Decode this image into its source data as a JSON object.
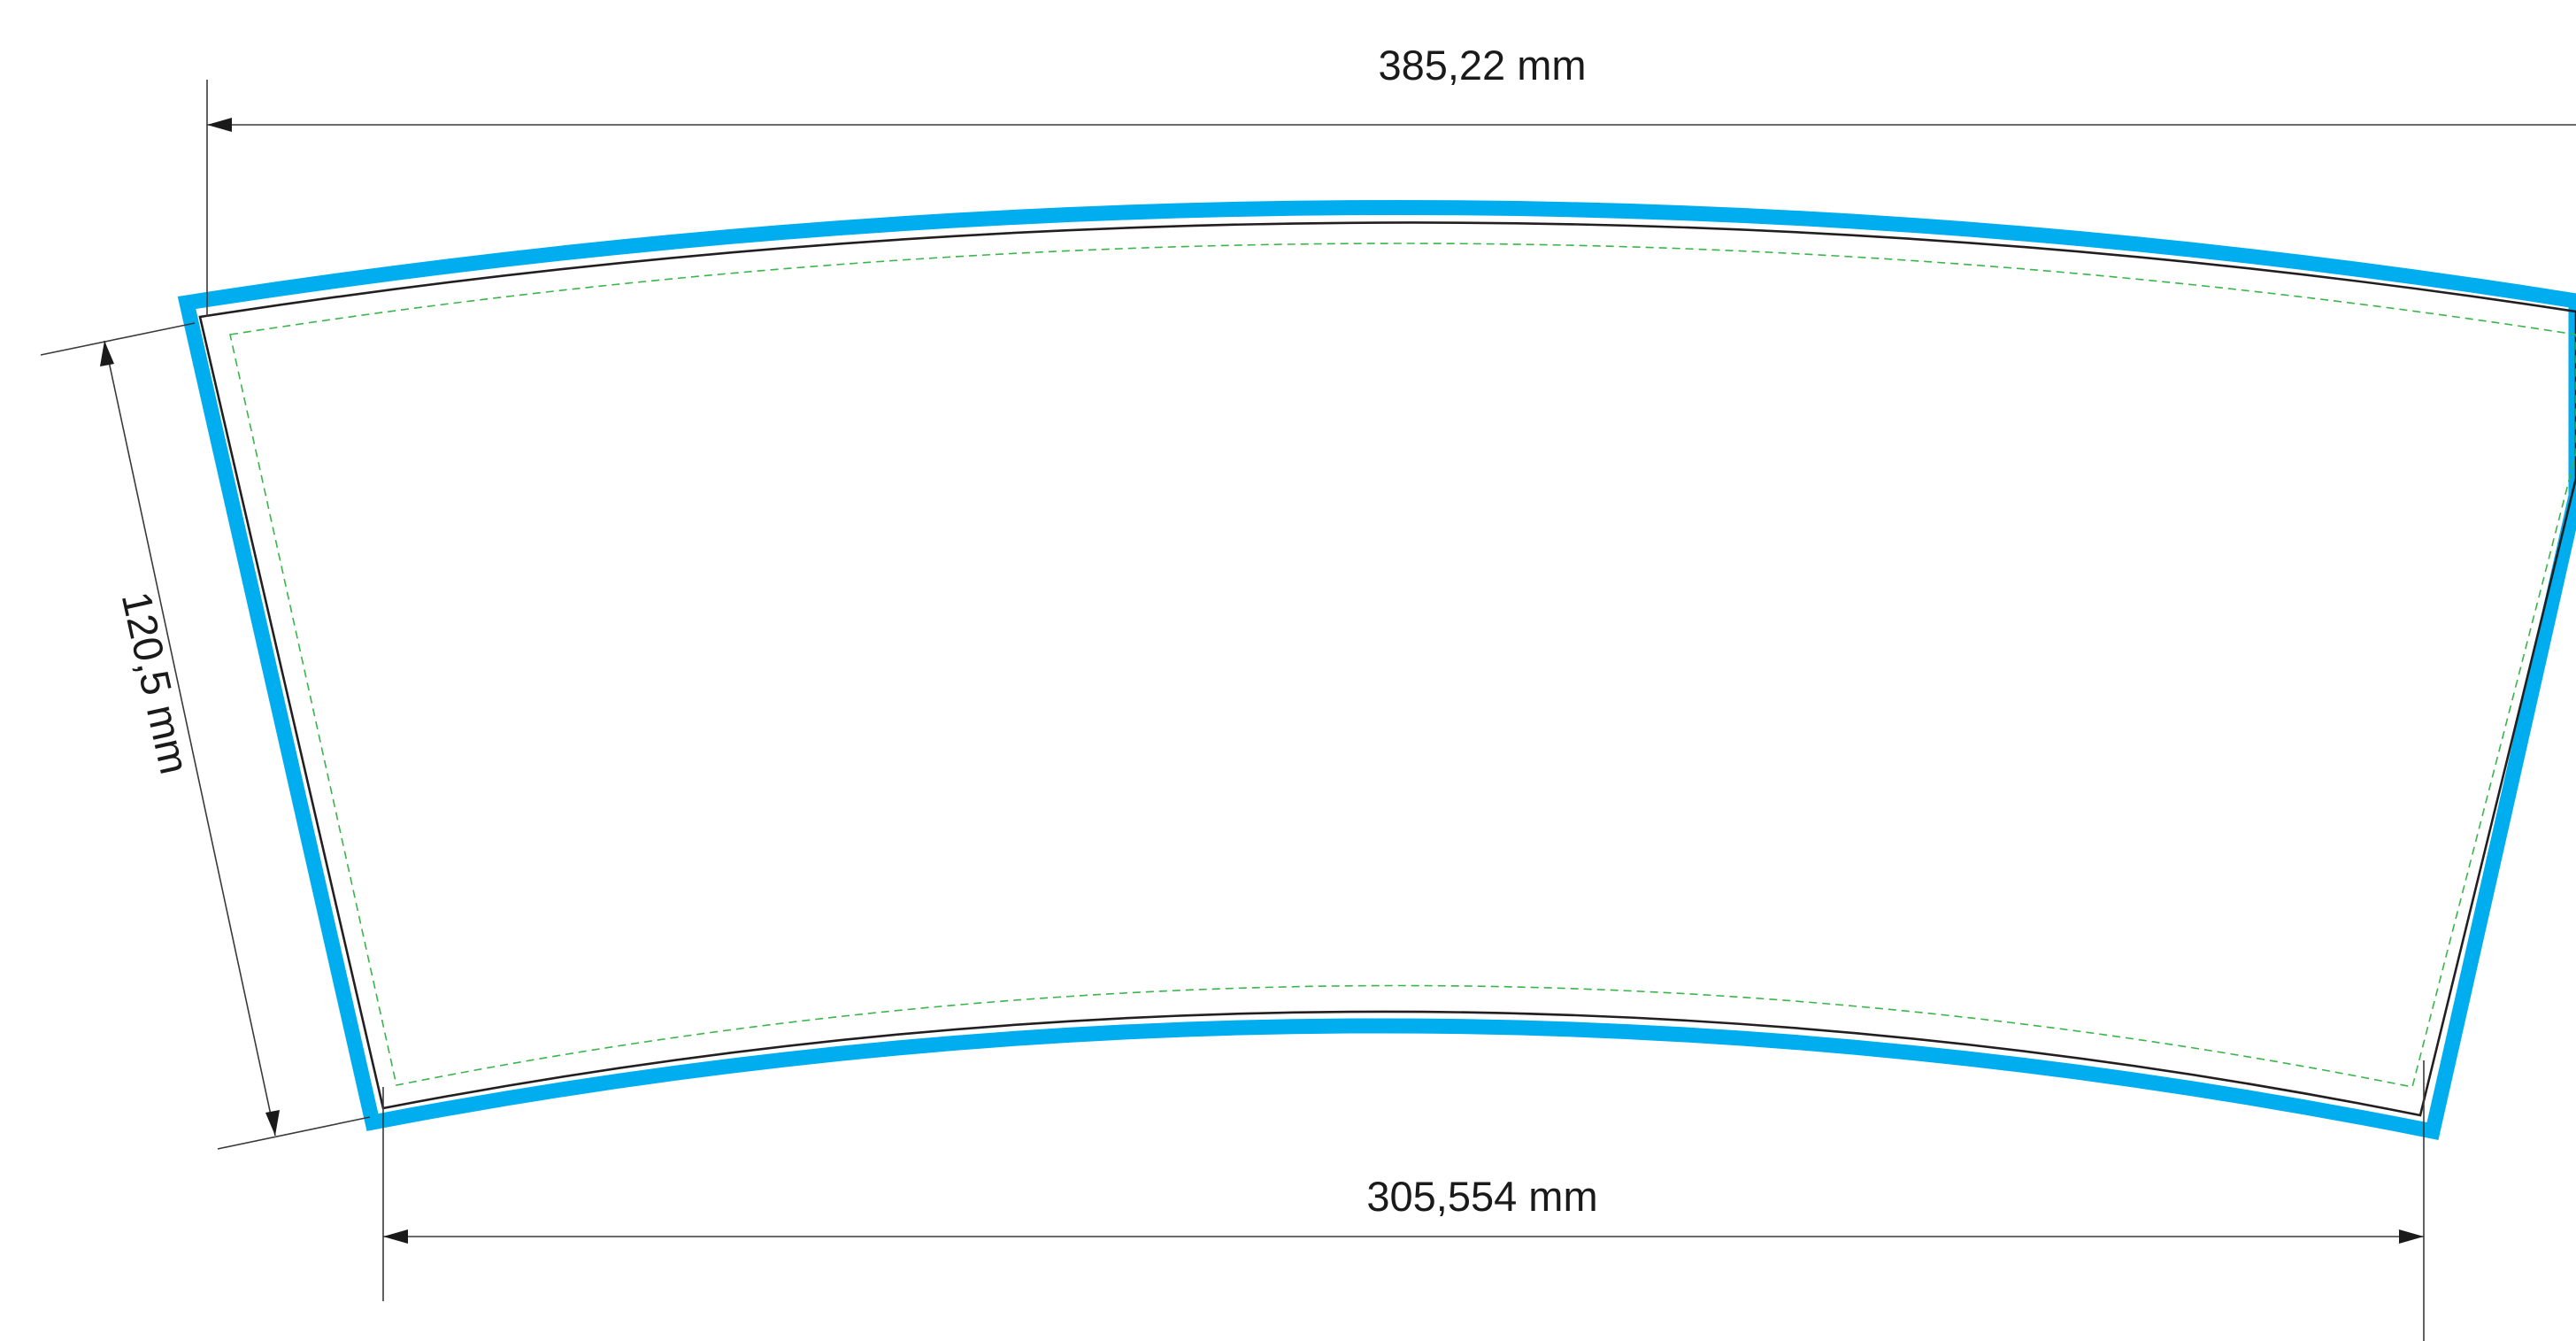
{
  "colors": {
    "outer_border": "#00aeef",
    "cut_line": "#231f20",
    "safe_line": "#39b54a",
    "dimension_line": "#3a3a3a",
    "text": "#1a1a1a",
    "background": "#ffffff"
  },
  "dimensions": {
    "top_width": "385,22 mm",
    "side_height": "120,5 mm",
    "bottom_width": "305,554 mm"
  }
}
